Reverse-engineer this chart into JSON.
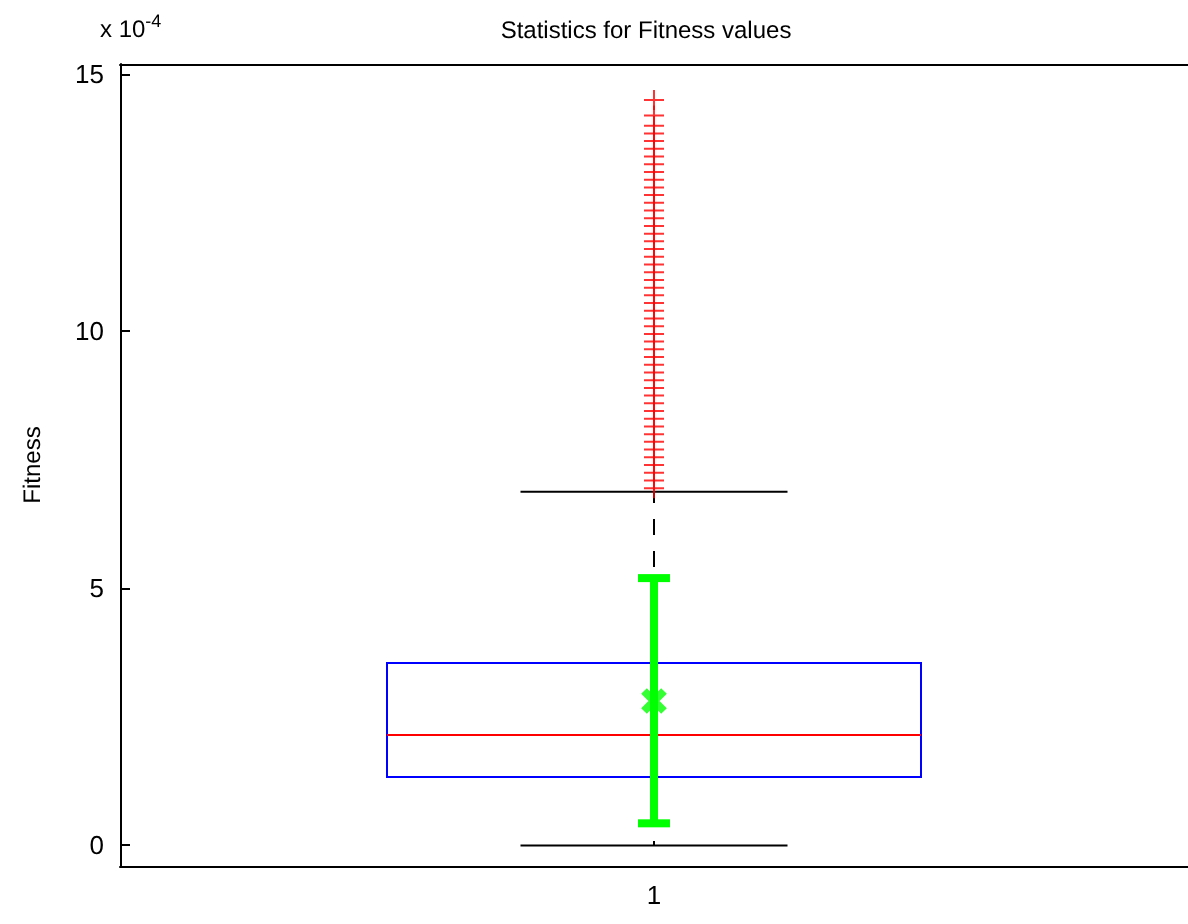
{
  "chart_data": {
    "type": "box",
    "title": "Statistics for Fitness values",
    "ylabel": "Fitness",
    "annotations": [
      "x 10$^{-4}$"
    ],
    "categories": [
      "1"
    ],
    "ylim": [
      -0.4,
      15.2
    ],
    "yticks": [
      0,
      5,
      10,
      15
    ],
    "grid": false,
    "series": [
      {
        "color": "#0000ff",
        "boxes": [
          {
            "low": 0,
            "q1": 1.33,
            "median": 2.15,
            "q3": 3.55,
            "high": 6.88,
            "outliers": [
              6.95,
              7.1,
              7.25,
              7.4,
              7.55,
              7.7,
              7.85,
              8.0,
              8.15,
              8.3,
              8.45,
              8.6,
              8.75,
              8.9,
              9.05,
              9.2,
              9.35,
              9.5,
              9.65,
              9.8,
              9.95,
              10.1,
              10.25,
              10.4,
              10.55,
              10.7,
              10.85,
              11.0,
              11.15,
              11.3,
              11.45,
              11.6,
              11.75,
              11.9,
              12.05,
              12.2,
              12.35,
              12.5,
              12.65,
              12.8,
              12.95,
              13.1,
              13.25,
              13.4,
              13.55,
              13.7,
              13.85,
              14.0,
              14.2,
              14.5
            ]
          }
        ]
      },
      {
        "type": "scatter",
        "x": [
          "1"
        ],
        "values": [
          2.81
        ],
        "errors": [
          [
            0.43,
            5.2
          ]
        ],
        "color": "#00ff00",
        "marker": "cross"
      }
    ]
  }
}
